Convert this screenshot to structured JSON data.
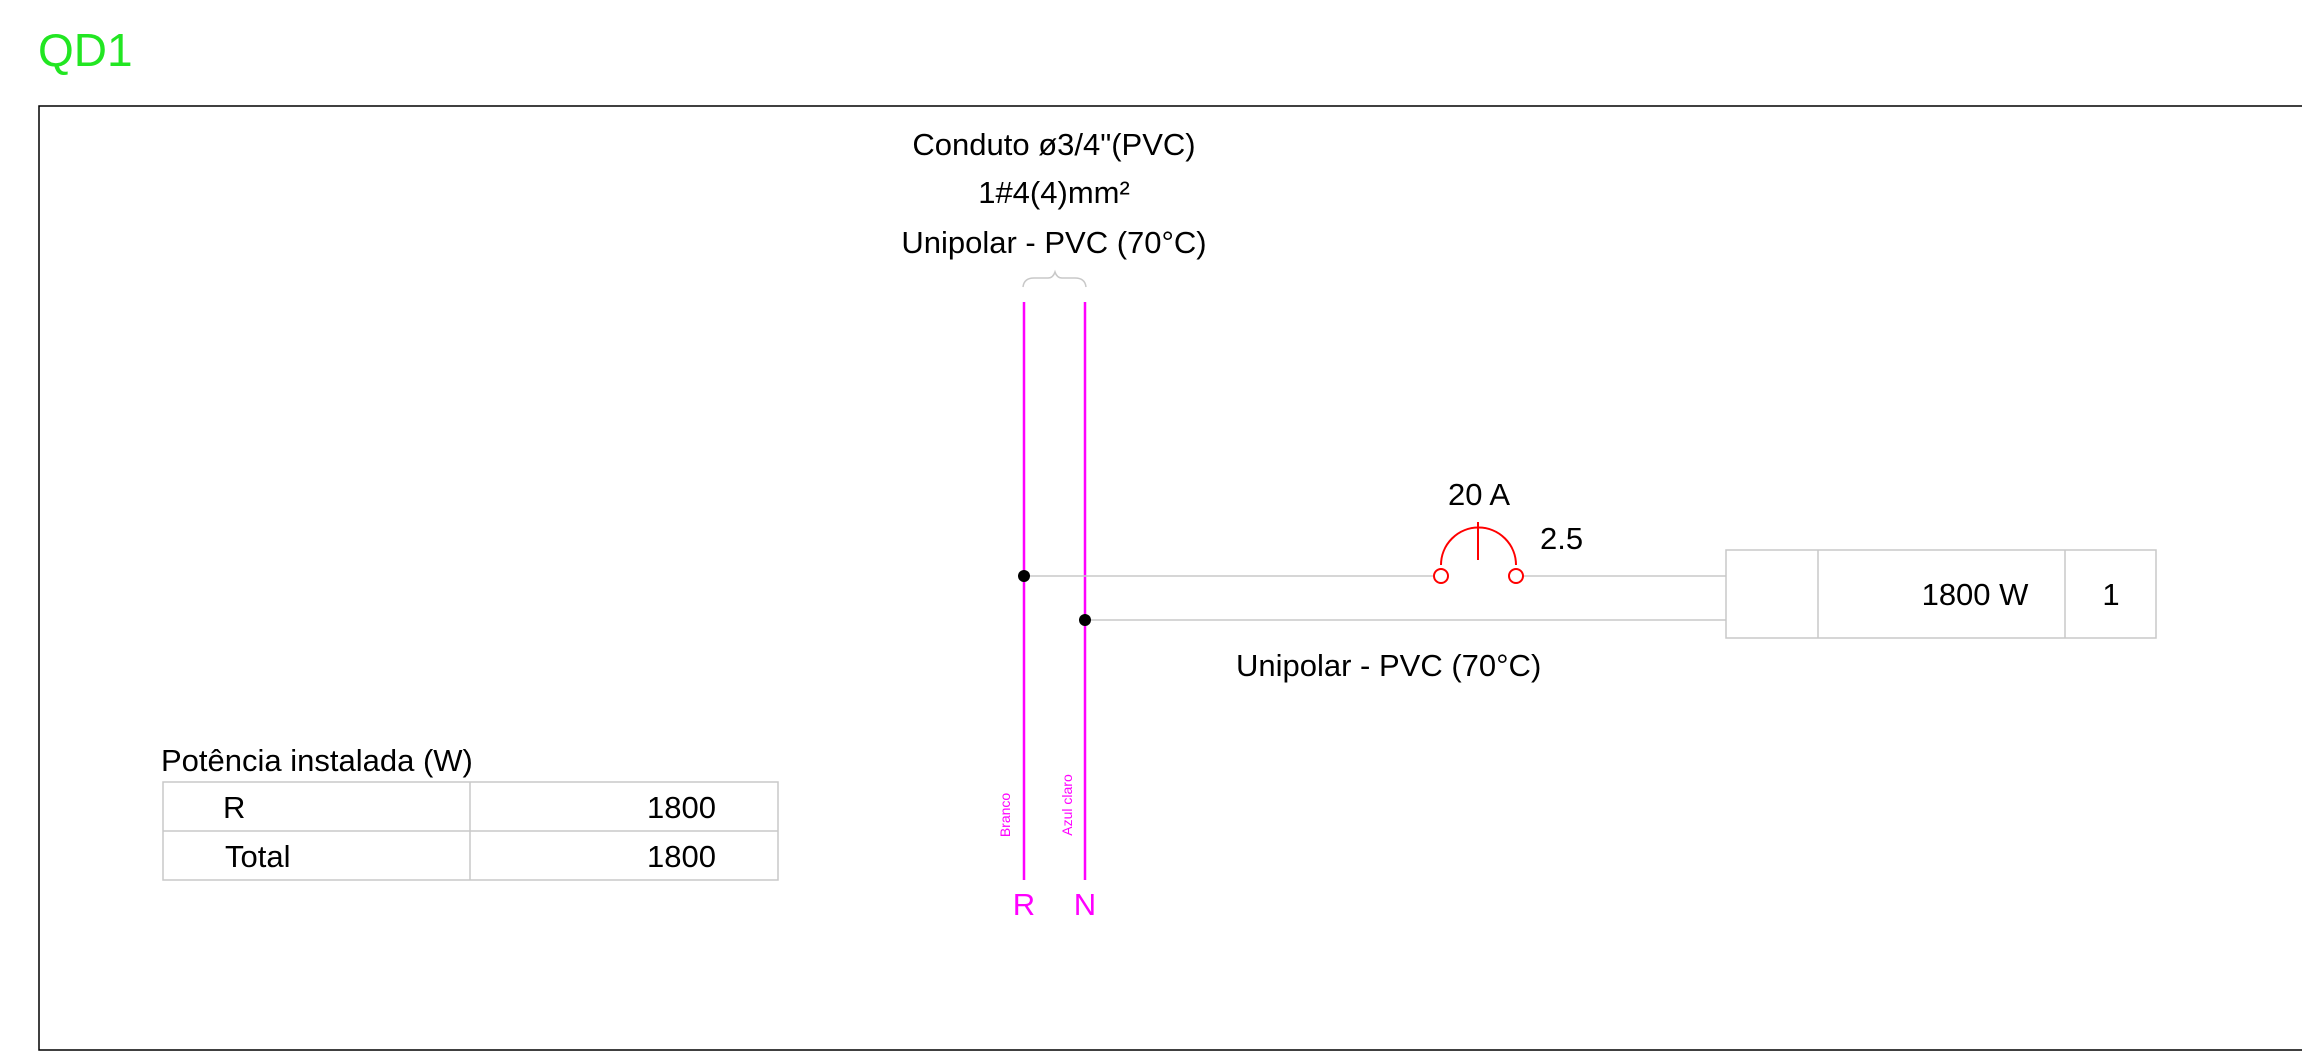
{
  "panel": {
    "name": "QD1"
  },
  "conduit": {
    "line1": "Conduto ø3/4\"(PVC)",
    "line2": "1#4(4)mm²",
    "line3": "Unipolar - PVC (70°C)"
  },
  "bus": {
    "phase": {
      "label": "R",
      "color_name": "Branco"
    },
    "neutral": {
      "label": "N",
      "color_name": "Azul claro"
    }
  },
  "breaker": {
    "rating": "20 A",
    "section": "2.5"
  },
  "circuit": {
    "cable_type": "Unipolar - PVC (70°C)",
    "load_cell": "",
    "power": "1800 W",
    "number": "1"
  },
  "installed_power": {
    "title": "Potência instalada (W)",
    "rows": [
      {
        "phase": "R",
        "value": "1800"
      },
      {
        "phase": "Total",
        "value": "1800"
      }
    ]
  },
  "colors": {
    "title": "#22e622",
    "bus": "#ff00ff",
    "breaker": "#ff0000",
    "wire": "#c8c8c8",
    "frame": "#000000",
    "table_border": "#c8c8c8"
  }
}
